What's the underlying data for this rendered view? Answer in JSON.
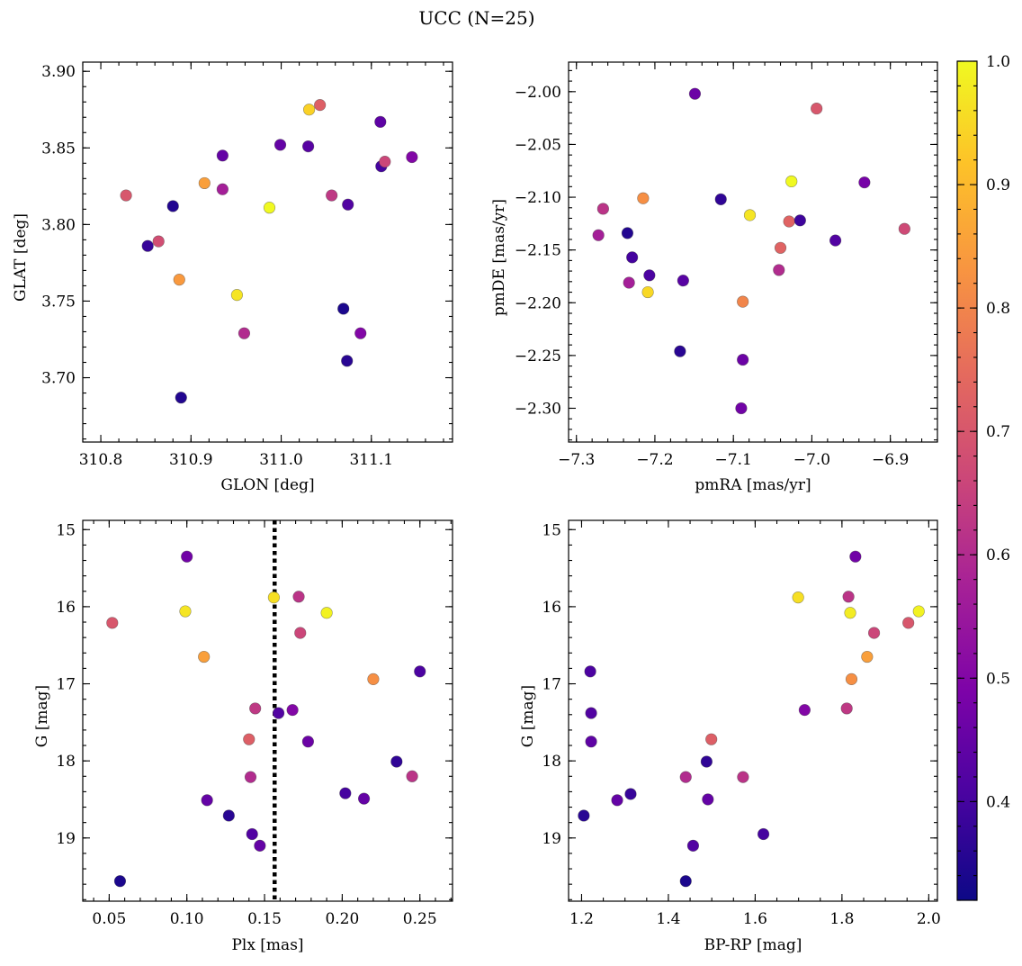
{
  "figure": {
    "title": "UCC (N=25)"
  },
  "chart_data": [
    {
      "type": "scatter",
      "xlabel": "GLON [deg]",
      "ylabel": "GLAT [deg]",
      "xlim": [
        310.78,
        311.19
      ],
      "ylim": [
        3.658,
        3.906
      ],
      "yinvert": false,
      "xticks": [
        {
          "v": 310.8,
          "label": "310.8"
        },
        {
          "v": 310.9,
          "label": "310.9"
        },
        {
          "v": 311.0,
          "label": "311.0"
        },
        {
          "v": 311.1,
          "label": "311.1"
        }
      ],
      "xminor_step": 0.02,
      "yticks": [
        {
          "v": 3.7,
          "label": "3.70"
        },
        {
          "v": 3.75,
          "label": "3.75"
        },
        {
          "v": 3.8,
          "label": "3.80"
        },
        {
          "v": 3.85,
          "label": "3.85"
        },
        {
          "v": 3.9,
          "label": "3.90"
        }
      ],
      "yminor_step": 0.01,
      "points": [
        {
          "x": 310.828,
          "y": 3.819,
          "c": 0.7
        },
        {
          "x": 310.852,
          "y": 3.786,
          "c": 0.38
        },
        {
          "x": 310.864,
          "y": 3.789,
          "c": 0.68
        },
        {
          "x": 310.88,
          "y": 3.812,
          "c": 0.35
        },
        {
          "x": 310.887,
          "y": 3.764,
          "c": 0.84
        },
        {
          "x": 310.889,
          "y": 3.687,
          "c": 0.35
        },
        {
          "x": 310.915,
          "y": 3.827,
          "c": 0.85
        },
        {
          "x": 310.935,
          "y": 3.845,
          "c": 0.45
        },
        {
          "x": 310.935,
          "y": 3.823,
          "c": 0.57
        },
        {
          "x": 310.951,
          "y": 3.754,
          "c": 0.97
        },
        {
          "x": 310.959,
          "y": 3.729,
          "c": 0.6
        },
        {
          "x": 310.987,
          "y": 3.811,
          "c": 1.0
        },
        {
          "x": 310.999,
          "y": 3.852,
          "c": 0.45
        },
        {
          "x": 311.03,
          "y": 3.851,
          "c": 0.43
        },
        {
          "x": 311.031,
          "y": 3.875,
          "c": 0.94
        },
        {
          "x": 311.043,
          "y": 3.878,
          "c": 0.72
        },
        {
          "x": 311.056,
          "y": 3.819,
          "c": 0.63
        },
        {
          "x": 311.069,
          "y": 3.745,
          "c": 0.34
        },
        {
          "x": 311.073,
          "y": 3.711,
          "c": 0.36
        },
        {
          "x": 311.074,
          "y": 3.813,
          "c": 0.42
        },
        {
          "x": 311.088,
          "y": 3.729,
          "c": 0.5
        },
        {
          "x": 311.11,
          "y": 3.867,
          "c": 0.44
        },
        {
          "x": 311.111,
          "y": 3.838,
          "c": 0.4
        },
        {
          "x": 311.115,
          "y": 3.841,
          "c": 0.66
        },
        {
          "x": 311.145,
          "y": 3.844,
          "c": 0.5
        }
      ]
    },
    {
      "type": "scatter",
      "xlabel": "pmRA [mas/yr]",
      "ylabel": "pmDE [mas/yr]",
      "xlim": [
        -7.31,
        -6.84
      ],
      "ylim": [
        -2.332,
        -1.972
      ],
      "yinvert": false,
      "xticks": [
        {
          "v": -7.3,
          "label": "−7.3"
        },
        {
          "v": -7.2,
          "label": "−7.2"
        },
        {
          "v": -7.1,
          "label": "−7.1"
        },
        {
          "v": -7.0,
          "label": "−7.0"
        },
        {
          "v": -6.9,
          "label": "−6.9"
        }
      ],
      "xminor_step": 0.02,
      "yticks": [
        {
          "v": -2.3,
          "label": "−2.30"
        },
        {
          "v": -2.25,
          "label": "−2.25"
        },
        {
          "v": -2.2,
          "label": "−2.20"
        },
        {
          "v": -2.15,
          "label": "−2.15"
        },
        {
          "v": -2.1,
          "label": "−2.10"
        },
        {
          "v": -2.05,
          "label": "−2.05"
        },
        {
          "v": -2.0,
          "label": "−2.00"
        }
      ],
      "yminor_step": 0.01,
      "points": [
        {
          "x": -7.272,
          "y": -2.136,
          "c": 0.57
        },
        {
          "x": -7.266,
          "y": -2.111,
          "c": 0.62
        },
        {
          "x": -7.235,
          "y": -2.134,
          "c": 0.35
        },
        {
          "x": -7.233,
          "y": -2.181,
          "c": 0.57
        },
        {
          "x": -7.229,
          "y": -2.157,
          "c": 0.4
        },
        {
          "x": -7.215,
          "y": -2.101,
          "c": 0.82
        },
        {
          "x": -7.209,
          "y": -2.19,
          "c": 0.95
        },
        {
          "x": -7.207,
          "y": -2.174,
          "c": 0.41
        },
        {
          "x": -7.168,
          "y": -2.246,
          "c": 0.36
        },
        {
          "x": -7.164,
          "y": -2.179,
          "c": 0.43
        },
        {
          "x": -7.149,
          "y": -2.002,
          "c": 0.46
        },
        {
          "x": -7.116,
          "y": -2.102,
          "c": 0.37
        },
        {
          "x": -7.09,
          "y": -2.3,
          "c": 0.47
        },
        {
          "x": -7.088,
          "y": -2.254,
          "c": 0.46
        },
        {
          "x": -7.088,
          "y": -2.199,
          "c": 0.8
        },
        {
          "x": -7.079,
          "y": -2.117,
          "c": 0.97
        },
        {
          "x": -7.042,
          "y": -2.169,
          "c": 0.6
        },
        {
          "x": -7.04,
          "y": -2.148,
          "c": 0.73
        },
        {
          "x": -7.029,
          "y": -2.123,
          "c": 0.73
        },
        {
          "x": -7.026,
          "y": -2.085,
          "c": 1.0
        },
        {
          "x": -7.015,
          "y": -2.122,
          "c": 0.39
        },
        {
          "x": -6.994,
          "y": -2.016,
          "c": 0.7
        },
        {
          "x": -6.97,
          "y": -2.141,
          "c": 0.42
        },
        {
          "x": -6.933,
          "y": -2.086,
          "c": 0.48
        },
        {
          "x": -6.882,
          "y": -2.13,
          "c": 0.67
        }
      ]
    },
    {
      "type": "scatter",
      "xlabel": "Plx [mas]",
      "ylabel": "G [mag]",
      "xlim": [
        0.033,
        0.271
      ],
      "ylim": [
        14.88,
        19.82
      ],
      "yinvert": true,
      "vline": {
        "x": 0.1565,
        "style": "dotted",
        "color": "#000000"
      },
      "xticks": [
        {
          "v": 0.05,
          "label": "0.05"
        },
        {
          "v": 0.1,
          "label": "0.10"
        },
        {
          "v": 0.15,
          "label": "0.15"
        },
        {
          "v": 0.2,
          "label": "0.20"
        },
        {
          "v": 0.25,
          "label": "0.25"
        }
      ],
      "xminor_step": 0.01,
      "yticks": [
        {
          "v": 15,
          "label": "15"
        },
        {
          "v": 16,
          "label": "16"
        },
        {
          "v": 17,
          "label": "17"
        },
        {
          "v": 18,
          "label": "18"
        },
        {
          "v": 19,
          "label": "19"
        }
      ],
      "yminor_step": 0.2,
      "points": [
        {
          "x": 0.052,
          "y": 16.21,
          "c": 0.7
        },
        {
          "x": 0.057,
          "y": 19.56,
          "c": 0.34
        },
        {
          "x": 0.099,
          "y": 16.06,
          "c": 0.97
        },
        {
          "x": 0.1,
          "y": 15.35,
          "c": 0.47
        },
        {
          "x": 0.111,
          "y": 16.65,
          "c": 0.85
        },
        {
          "x": 0.113,
          "y": 18.51,
          "c": 0.45
        },
        {
          "x": 0.127,
          "y": 18.71,
          "c": 0.36
        },
        {
          "x": 0.14,
          "y": 17.72,
          "c": 0.72
        },
        {
          "x": 0.141,
          "y": 18.21,
          "c": 0.6
        },
        {
          "x": 0.142,
          "y": 18.95,
          "c": 0.42
        },
        {
          "x": 0.144,
          "y": 17.32,
          "c": 0.63
        },
        {
          "x": 0.147,
          "y": 19.1,
          "c": 0.45
        },
        {
          "x": 0.156,
          "y": 15.88,
          "c": 0.96
        },
        {
          "x": 0.159,
          "y": 17.38,
          "c": 0.42
        },
        {
          "x": 0.168,
          "y": 17.34,
          "c": 0.5
        },
        {
          "x": 0.172,
          "y": 15.87,
          "c": 0.62
        },
        {
          "x": 0.173,
          "y": 16.34,
          "c": 0.66
        },
        {
          "x": 0.178,
          "y": 17.75,
          "c": 0.46
        },
        {
          "x": 0.19,
          "y": 16.08,
          "c": 0.99
        },
        {
          "x": 0.202,
          "y": 18.42,
          "c": 0.4
        },
        {
          "x": 0.214,
          "y": 18.49,
          "c": 0.45
        },
        {
          "x": 0.22,
          "y": 16.94,
          "c": 0.82
        },
        {
          "x": 0.235,
          "y": 18.01,
          "c": 0.37
        },
        {
          "x": 0.245,
          "y": 18.2,
          "c": 0.62
        },
        {
          "x": 0.25,
          "y": 16.84,
          "c": 0.41
        }
      ]
    },
    {
      "type": "scatter",
      "xlabel": "BP-RP [mag]",
      "ylabel": "G [mag]",
      "xlim": [
        1.17,
        2.02
      ],
      "ylim": [
        14.88,
        19.82
      ],
      "yinvert": true,
      "xticks": [
        {
          "v": 1.2,
          "label": "1.2"
        },
        {
          "v": 1.4,
          "label": "1.4"
        },
        {
          "v": 1.6,
          "label": "1.6"
        },
        {
          "v": 1.8,
          "label": "1.8"
        },
        {
          "v": 2.0,
          "label": "2.0"
        }
      ],
      "xminor_step": 0.05,
      "yticks": [
        {
          "v": 15,
          "label": "15"
        },
        {
          "v": 16,
          "label": "16"
        },
        {
          "v": 17,
          "label": "17"
        },
        {
          "v": 18,
          "label": "18"
        },
        {
          "v": 19,
          "label": "19"
        }
      ],
      "yminor_step": 0.2,
      "points": [
        {
          "x": 1.205,
          "y": 18.71,
          "c": 0.36
        },
        {
          "x": 1.22,
          "y": 16.84,
          "c": 0.41
        },
        {
          "x": 1.222,
          "y": 17.38,
          "c": 0.42
        },
        {
          "x": 1.222,
          "y": 17.75,
          "c": 0.44
        },
        {
          "x": 1.282,
          "y": 18.51,
          "c": 0.45
        },
        {
          "x": 1.313,
          "y": 18.43,
          "c": 0.38
        },
        {
          "x": 1.44,
          "y": 18.21,
          "c": 0.6
        },
        {
          "x": 1.44,
          "y": 19.56,
          "c": 0.34
        },
        {
          "x": 1.457,
          "y": 19.1,
          "c": 0.42
        },
        {
          "x": 1.488,
          "y": 18.01,
          "c": 0.37
        },
        {
          "x": 1.491,
          "y": 18.5,
          "c": 0.45
        },
        {
          "x": 1.499,
          "y": 17.72,
          "c": 0.72
        },
        {
          "x": 1.572,
          "y": 18.21,
          "c": 0.62
        },
        {
          "x": 1.619,
          "y": 18.95,
          "c": 0.4
        },
        {
          "x": 1.699,
          "y": 15.88,
          "c": 0.96
        },
        {
          "x": 1.714,
          "y": 17.34,
          "c": 0.5
        },
        {
          "x": 1.811,
          "y": 17.32,
          "c": 0.63
        },
        {
          "x": 1.815,
          "y": 15.87,
          "c": 0.62
        },
        {
          "x": 1.819,
          "y": 16.08,
          "c": 0.98
        },
        {
          "x": 1.822,
          "y": 16.94,
          "c": 0.82
        },
        {
          "x": 1.831,
          "y": 15.35,
          "c": 0.47
        },
        {
          "x": 1.858,
          "y": 16.65,
          "c": 0.85
        },
        {
          "x": 1.874,
          "y": 16.34,
          "c": 0.66
        },
        {
          "x": 1.953,
          "y": 16.21,
          "c": 0.7
        },
        {
          "x": 1.977,
          "y": 16.06,
          "c": 0.99
        }
      ]
    }
  ],
  "colorbar": {
    "colormap": "plasma",
    "range": [
      0.32,
      1.0
    ],
    "ticks": [
      {
        "v": 0.4,
        "label": "0.4"
      },
      {
        "v": 0.5,
        "label": "0.5"
      },
      {
        "v": 0.6,
        "label": "0.6"
      },
      {
        "v": 0.7,
        "label": "0.7"
      },
      {
        "v": 0.8,
        "label": "0.8"
      },
      {
        "v": 0.9,
        "label": "0.9"
      },
      {
        "v": 1.0,
        "label": "1.0"
      }
    ],
    "minor_step": 0.02
  }
}
